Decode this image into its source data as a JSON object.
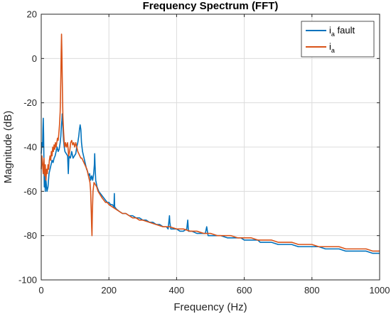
{
  "chart_data": {
    "type": "line",
    "title": "Frequency Spectrum (FFT)",
    "xlabel": "Frequency (Hz)",
    "ylabel": "Magnitude (dB)",
    "xlim": [
      0,
      1000
    ],
    "ylim": [
      -100,
      20
    ],
    "xticks": [
      0,
      200,
      400,
      600,
      800,
      1000
    ],
    "yticks": [
      -100,
      -80,
      -60,
      -40,
      -20,
      0,
      20
    ],
    "grid": true,
    "legend_position": "top-right",
    "series": [
      {
        "name": "i_a fault",
        "legend_main": "i",
        "legend_sub": "a",
        "legend_suffix": " fault",
        "color": "#0072BD",
        "points": [
          [
            0,
            -43
          ],
          [
            2,
            -38
          ],
          [
            4,
            -40
          ],
          [
            5,
            -32
          ],
          [
            6,
            -27
          ],
          [
            7,
            -34
          ],
          [
            8,
            -47
          ],
          [
            9,
            -58
          ],
          [
            10,
            -52
          ],
          [
            12,
            -60
          ],
          [
            14,
            -55
          ],
          [
            17,
            -60
          ],
          [
            20,
            -58
          ],
          [
            23,
            -52
          ],
          [
            26,
            -50
          ],
          [
            29,
            -48
          ],
          [
            32,
            -46
          ],
          [
            35,
            -47
          ],
          [
            38,
            -45
          ],
          [
            41,
            -44
          ],
          [
            44,
            -42
          ],
          [
            47,
            -40
          ],
          [
            50,
            -42
          ],
          [
            53,
            -41
          ],
          [
            56,
            -38
          ],
          [
            58,
            -35
          ],
          [
            59,
            -32
          ],
          [
            60,
            -30
          ],
          [
            61,
            -28
          ],
          [
            62,
            -25
          ],
          [
            63,
            -27
          ],
          [
            64,
            -31
          ],
          [
            66,
            -37
          ],
          [
            68,
            -40
          ],
          [
            70,
            -42
          ],
          [
            74,
            -43
          ],
          [
            78,
            -44
          ],
          [
            80,
            -52
          ],
          [
            82,
            -44
          ],
          [
            86,
            -45
          ],
          [
            90,
            -42
          ],
          [
            94,
            -45
          ],
          [
            98,
            -44
          ],
          [
            102,
            -43
          ],
          [
            105,
            -40
          ],
          [
            108,
            -38
          ],
          [
            111,
            -35
          ],
          [
            113,
            -32
          ],
          [
            115,
            -30
          ],
          [
            117,
            -32
          ],
          [
            119,
            -38
          ],
          [
            122,
            -42
          ],
          [
            125,
            -44
          ],
          [
            128,
            -46
          ],
          [
            131,
            -48
          ],
          [
            134,
            -50
          ],
          [
            137,
            -51
          ],
          [
            140,
            -53
          ],
          [
            143,
            -52
          ],
          [
            146,
            -55
          ],
          [
            149,
            -53
          ],
          [
            152,
            -55
          ],
          [
            155,
            -52
          ],
          [
            157,
            -48
          ],
          [
            158,
            -43
          ],
          [
            159,
            -48
          ],
          [
            161,
            -55
          ],
          [
            165,
            -58
          ],
          [
            170,
            -60
          ],
          [
            175,
            -61
          ],
          [
            180,
            -62
          ],
          [
            185,
            -63
          ],
          [
            190,
            -64
          ],
          [
            195,
            -65
          ],
          [
            200,
            -65
          ],
          [
            205,
            -66
          ],
          [
            210,
            -66
          ],
          [
            215,
            -67
          ],
          [
            216,
            -61
          ],
          [
            217,
            -67
          ],
          [
            222,
            -68
          ],
          [
            230,
            -69
          ],
          [
            240,
            -70
          ],
          [
            250,
            -70
          ],
          [
            260,
            -71
          ],
          [
            270,
            -71
          ],
          [
            280,
            -72
          ],
          [
            290,
            -72
          ],
          [
            300,
            -73
          ],
          [
            310,
            -73
          ],
          [
            320,
            -74
          ],
          [
            330,
            -74
          ],
          [
            340,
            -75
          ],
          [
            350,
            -75
          ],
          [
            360,
            -76
          ],
          [
            370,
            -76
          ],
          [
            375,
            -77
          ],
          [
            379,
            -71
          ],
          [
            380,
            -74
          ],
          [
            383,
            -77
          ],
          [
            390,
            -77
          ],
          [
            400,
            -77
          ],
          [
            410,
            -78
          ],
          [
            420,
            -78
          ],
          [
            430,
            -77
          ],
          [
            433,
            -73
          ],
          [
            435,
            -78
          ],
          [
            445,
            -78
          ],
          [
            460,
            -79
          ],
          [
            475,
            -79
          ],
          [
            485,
            -79
          ],
          [
            489,
            -76
          ],
          [
            493,
            -80
          ],
          [
            510,
            -80
          ],
          [
            530,
            -80
          ],
          [
            550,
            -81
          ],
          [
            570,
            -81
          ],
          [
            590,
            -81
          ],
          [
            600,
            -82
          ],
          [
            620,
            -82
          ],
          [
            640,
            -82
          ],
          [
            647,
            -83
          ],
          [
            660,
            -83
          ],
          [
            680,
            -83
          ],
          [
            700,
            -84
          ],
          [
            720,
            -84
          ],
          [
            740,
            -84
          ],
          [
            760,
            -85
          ],
          [
            780,
            -85
          ],
          [
            800,
            -85
          ],
          [
            820,
            -85
          ],
          [
            840,
            -86
          ],
          [
            860,
            -86
          ],
          [
            880,
            -86
          ],
          [
            900,
            -87
          ],
          [
            920,
            -87
          ],
          [
            940,
            -87
          ],
          [
            960,
            -87
          ],
          [
            980,
            -88
          ],
          [
            1000,
            -88
          ]
        ]
      },
      {
        "name": "i_a",
        "legend_main": "i",
        "legend_sub": "a",
        "legend_suffix": "",
        "color": "#D95319",
        "points": [
          [
            0,
            -50
          ],
          [
            2,
            -44
          ],
          [
            4,
            -48
          ],
          [
            6,
            -52
          ],
          [
            8,
            -45
          ],
          [
            10,
            -53
          ],
          [
            12,
            -48
          ],
          [
            14,
            -55
          ],
          [
            16,
            -50
          ],
          [
            18,
            -52
          ],
          [
            20,
            -48
          ],
          [
            22,
            -50
          ],
          [
            24,
            -46
          ],
          [
            26,
            -44
          ],
          [
            28,
            -46
          ],
          [
            30,
            -42
          ],
          [
            32,
            -44
          ],
          [
            34,
            -40
          ],
          [
            36,
            -42
          ],
          [
            38,
            -39
          ],
          [
            40,
            -41
          ],
          [
            42,
            -38
          ],
          [
            44,
            -40
          ],
          [
            46,
            -38
          ],
          [
            48,
            -36
          ],
          [
            50,
            -37
          ],
          [
            52,
            -34
          ],
          [
            54,
            -30
          ],
          [
            56,
            -24
          ],
          [
            57,
            -17
          ],
          [
            58,
            -8
          ],
          [
            59,
            3
          ],
          [
            60,
            11
          ],
          [
            61,
            3
          ],
          [
            62,
            -8
          ],
          [
            63,
            -18
          ],
          [
            64,
            -26
          ],
          [
            66,
            -33
          ],
          [
            68,
            -38
          ],
          [
            70,
            -40
          ],
          [
            72,
            -38
          ],
          [
            75,
            -40
          ],
          [
            78,
            -38
          ],
          [
            81,
            -44
          ],
          [
            84,
            -42
          ],
          [
            87,
            -38
          ],
          [
            90,
            -37
          ],
          [
            93,
            -39
          ],
          [
            96,
            -38
          ],
          [
            99,
            -40
          ],
          [
            102,
            -38
          ],
          [
            105,
            -40
          ],
          [
            108,
            -42
          ],
          [
            111,
            -43
          ],
          [
            114,
            -44
          ],
          [
            117,
            -45
          ],
          [
            120,
            -45
          ],
          [
            123,
            -46
          ],
          [
            126,
            -47
          ],
          [
            129,
            -48
          ],
          [
            132,
            -49
          ],
          [
            135,
            -50
          ],
          [
            138,
            -52
          ],
          [
            141,
            -54
          ],
          [
            144,
            -56
          ],
          [
            146,
            -60
          ],
          [
            148,
            -70
          ],
          [
            149,
            -76
          ],
          [
            150,
            -80
          ],
          [
            151,
            -70
          ],
          [
            153,
            -60
          ],
          [
            156,
            -56
          ],
          [
            160,
            -57
          ],
          [
            164,
            -58
          ],
          [
            168,
            -60
          ],
          [
            172,
            -61
          ],
          [
            176,
            -62
          ],
          [
            180,
            -63
          ],
          [
            185,
            -64
          ],
          [
            190,
            -65
          ],
          [
            195,
            -65
          ],
          [
            200,
            -66
          ],
          [
            210,
            -67
          ],
          [
            220,
            -68
          ],
          [
            230,
            -69
          ],
          [
            240,
            -70
          ],
          [
            250,
            -70
          ],
          [
            260,
            -71
          ],
          [
            270,
            -72
          ],
          [
            280,
            -72
          ],
          [
            290,
            -73
          ],
          [
            300,
            -73
          ],
          [
            320,
            -74
          ],
          [
            340,
            -75
          ],
          [
            360,
            -76
          ],
          [
            380,
            -76
          ],
          [
            400,
            -77
          ],
          [
            420,
            -77
          ],
          [
            440,
            -78
          ],
          [
            460,
            -78
          ],
          [
            480,
            -79
          ],
          [
            500,
            -79
          ],
          [
            520,
            -80
          ],
          [
            540,
            -80
          ],
          [
            560,
            -80
          ],
          [
            580,
            -81
          ],
          [
            600,
            -81
          ],
          [
            620,
            -81
          ],
          [
            640,
            -82
          ],
          [
            660,
            -82
          ],
          [
            680,
            -82
          ],
          [
            700,
            -83
          ],
          [
            720,
            -83
          ],
          [
            740,
            -83
          ],
          [
            760,
            -84
          ],
          [
            780,
            -84
          ],
          [
            800,
            -84
          ],
          [
            820,
            -85
          ],
          [
            840,
            -85
          ],
          [
            860,
            -85
          ],
          [
            880,
            -85
          ],
          [
            900,
            -86
          ],
          [
            920,
            -86
          ],
          [
            940,
            -86
          ],
          [
            960,
            -86
          ],
          [
            980,
            -87
          ],
          [
            1000,
            -87
          ]
        ]
      }
    ]
  }
}
